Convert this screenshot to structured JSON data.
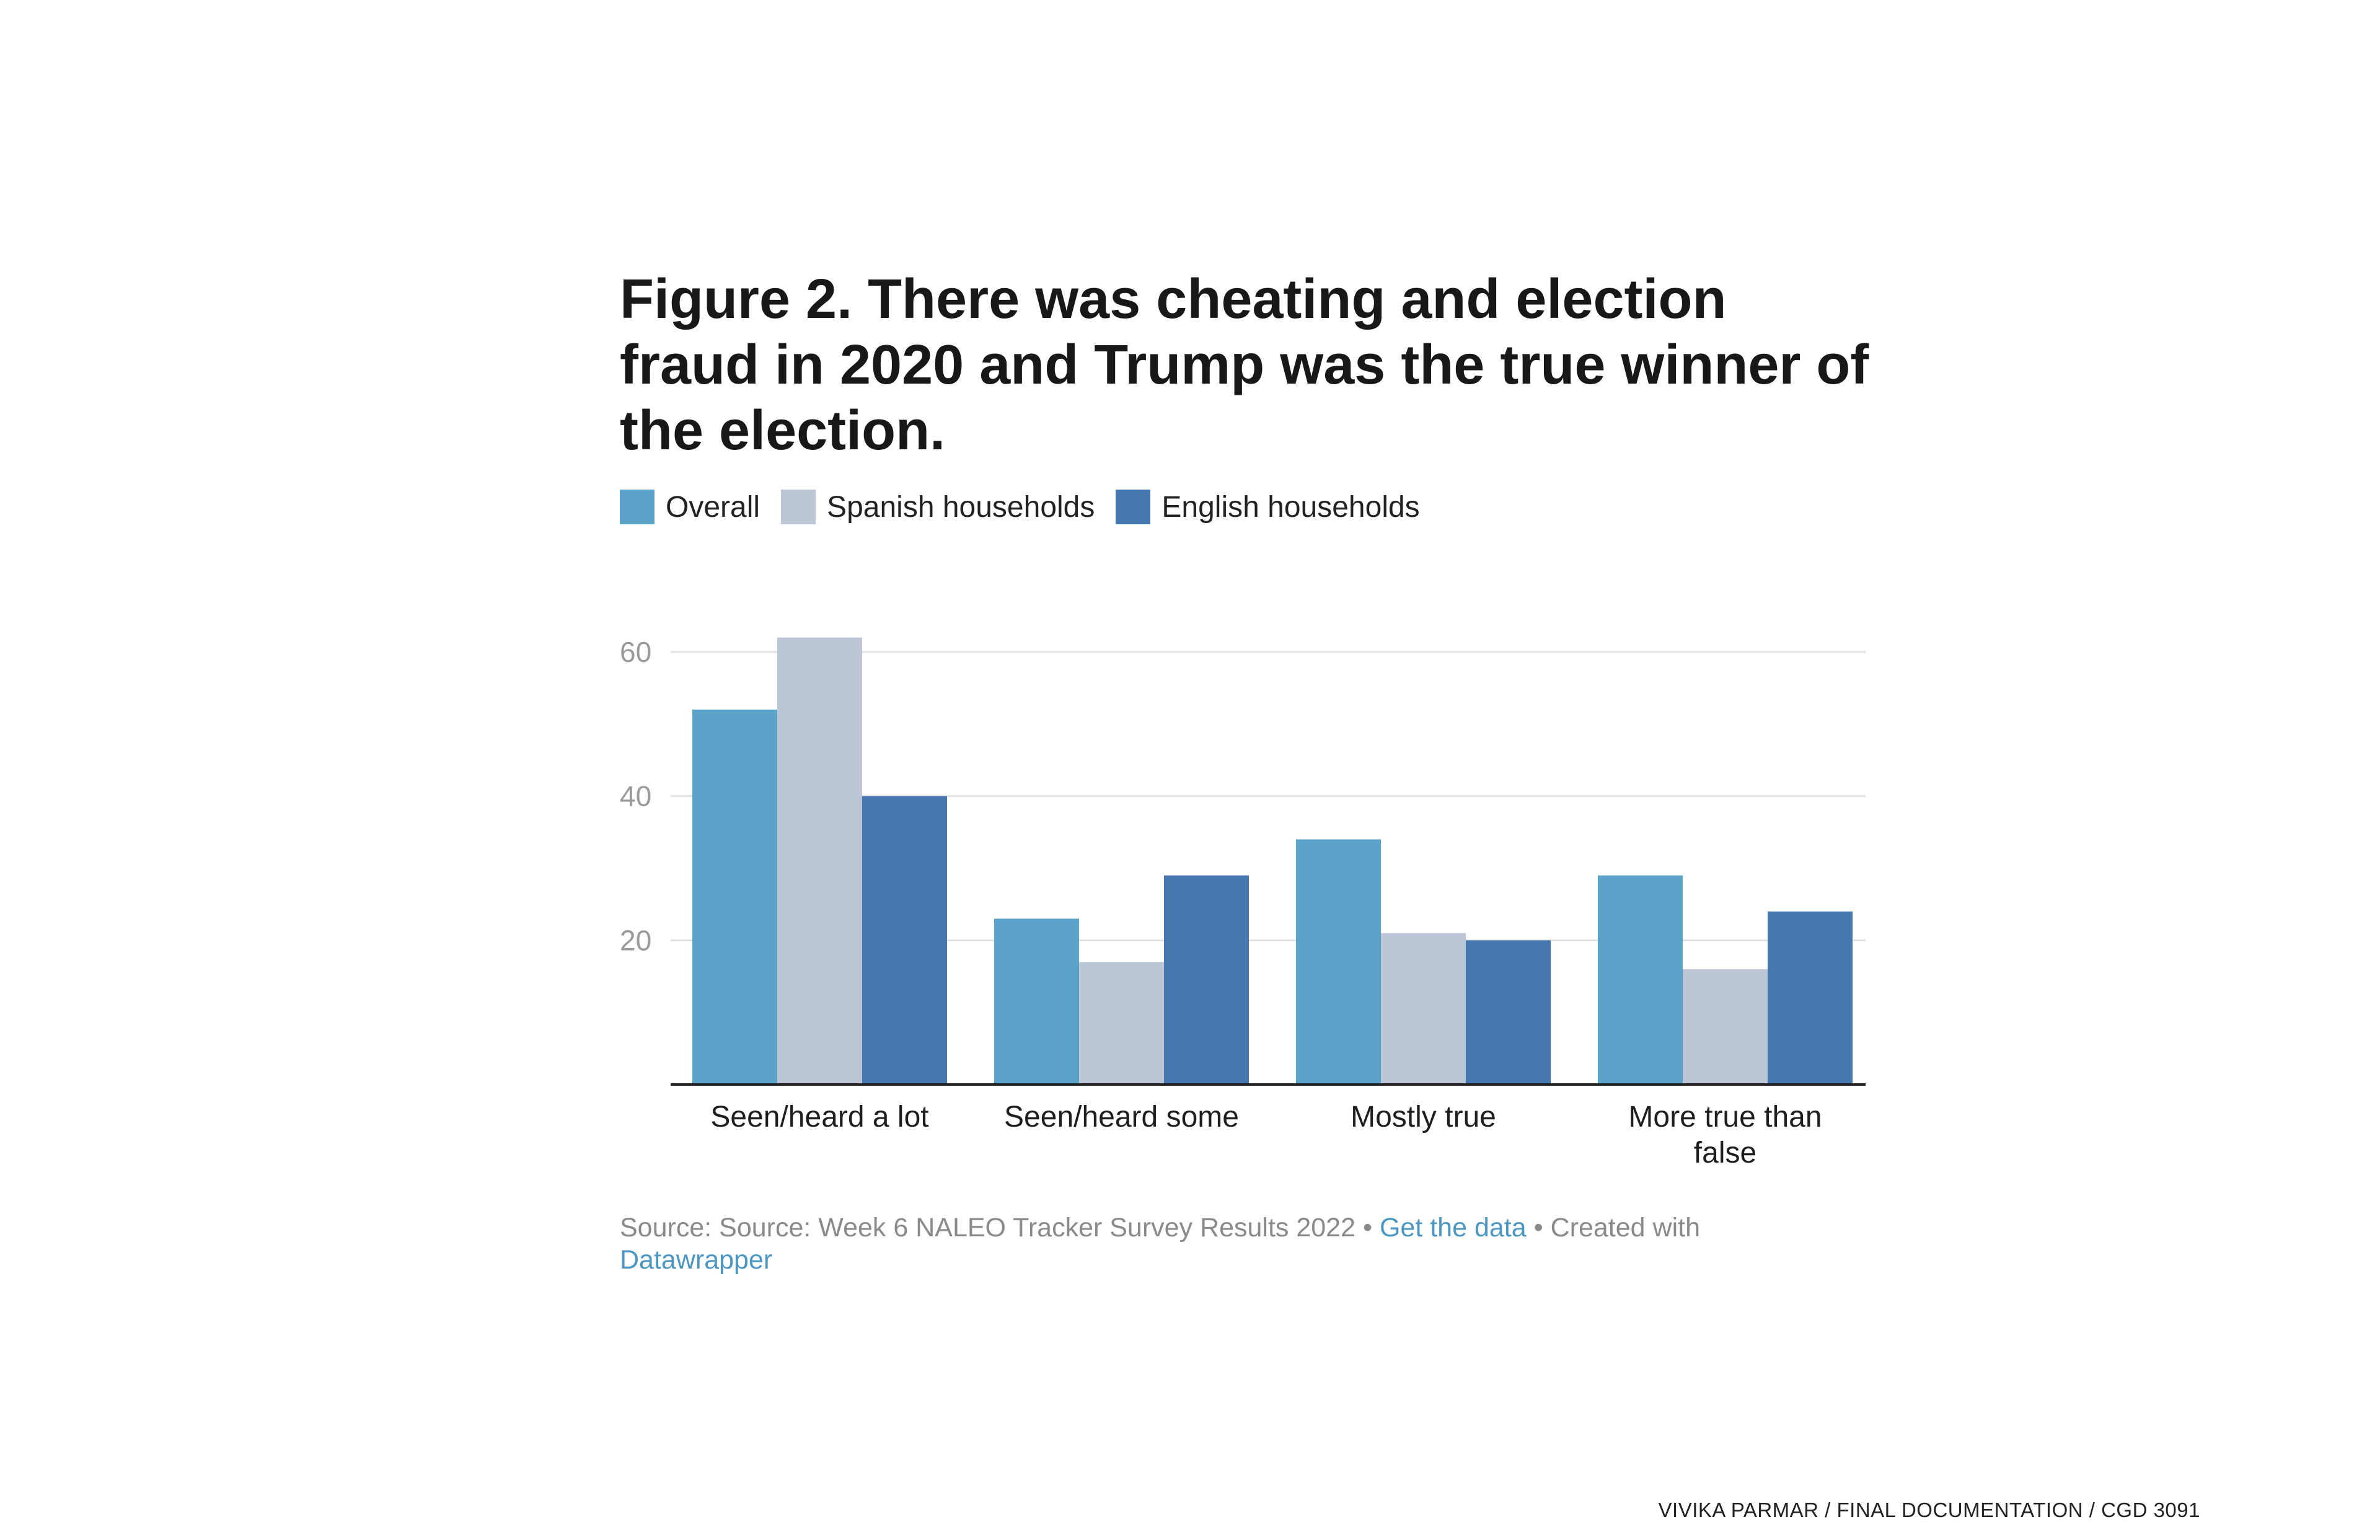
{
  "chart_data": {
    "type": "bar",
    "title": "Figure 2. There was cheating and election fraud in 2020 and Trump was the true winner of the election.",
    "categories": [
      "Seen/heard a lot",
      "Seen/heard some",
      "Mostly true",
      "More true than false"
    ],
    "category_lines": [
      [
        "Seen/heard a lot"
      ],
      [
        "Seen/heard some"
      ],
      [
        "Mostly true"
      ],
      [
        "More true than",
        "false"
      ]
    ],
    "series": [
      {
        "name": "Overall",
        "color": "#5ba3c8",
        "values": [
          52,
          23,
          34,
          29
        ]
      },
      {
        "name": "Spanish households",
        "color": "#bdc6d7",
        "values": [
          62,
          17,
          21,
          16
        ]
      },
      {
        "name": "English households",
        "color": "#4677ae",
        "values": [
          40,
          29,
          20,
          24
        ]
      }
    ],
    "yticks": [
      20,
      40,
      60
    ],
    "ylim": [
      0,
      60
    ],
    "grid": true,
    "legend_position": "top-left",
    "xlabel": "",
    "ylabel": ""
  },
  "legend": [
    {
      "label": "Overall",
      "color": "#5ba3c8"
    },
    {
      "label": "Spanish households",
      "color": "#bdc6d7"
    },
    {
      "label": "English households",
      "color": "#4677ae"
    }
  ],
  "source": {
    "prefix": "Source: Source: Week 6 NALEO Tracker Survey Results 2022 • ",
    "get_data_link": "Get the data",
    "middle": " • Created with ",
    "datawrapper_link": "Datawrapper"
  },
  "footer": {
    "credit": "VIVIKA PARMAR / FINAL DOCUMENTATION / CGD 3091"
  }
}
